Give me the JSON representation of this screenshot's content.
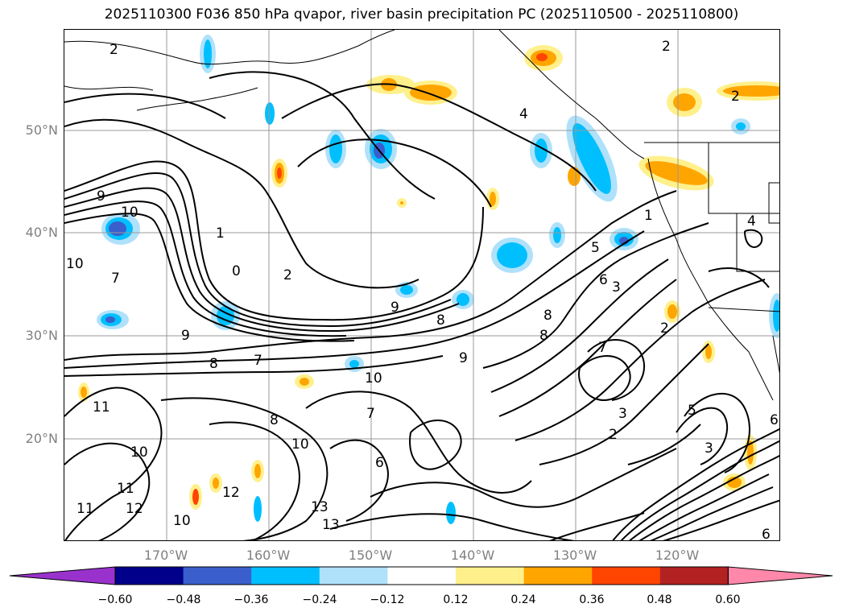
{
  "title": "2025110300 F036 850 hPa qvapor, river basin precipitation PC (2025110500 - 2025110800)",
  "latitude_labels": [
    "50°N",
    "40°N",
    "30°N",
    "20°N"
  ],
  "longitude_labels": [
    "170°W",
    "160°W",
    "150°W",
    "140°W",
    "130°W",
    "120°W"
  ],
  "map": {
    "lon_range": [
      -180,
      -110
    ],
    "lat_range": [
      10,
      60
    ],
    "grid": true,
    "contour_label_values": [
      "2",
      "4",
      "2",
      "2",
      "9",
      "10",
      "10",
      "7",
      "1",
      "0",
      "2",
      "9",
      "8",
      "9",
      "8",
      "8",
      "7",
      "10",
      "11",
      "10",
      "11",
      "12",
      "10",
      "11",
      "12",
      "13",
      "13",
      "10",
      "7",
      "6",
      "8",
      "9",
      "8",
      "7",
      "3",
      "2",
      "3",
      "2",
      "5",
      "6",
      "3",
      "1",
      "6",
      "5",
      "4",
      "6"
    ]
  },
  "colorbar": {
    "ticks": [
      "−0.60",
      "−0.48",
      "−0.36",
      "−0.24",
      "−0.12",
      "0.12",
      "0.24",
      "0.36",
      "0.48",
      "0.60"
    ],
    "colors": [
      "#9932cc",
      "#00008b",
      "#3a5fcd",
      "#00bfff",
      "#afe1fa",
      "#ffffff",
      "#fff08c",
      "#ffa500",
      "#ff4500",
      "#b22222",
      "#ff88aa"
    ],
    "extend": "both"
  }
}
